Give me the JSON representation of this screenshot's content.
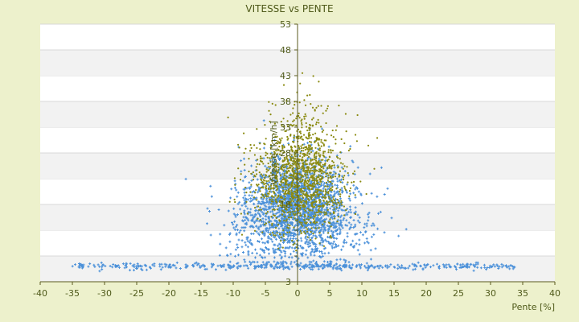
{
  "chart_data": {
    "type": "scatter",
    "title": "VITESSE vs PENTE",
    "xlabel": "Pente [%]",
    "ylabel": "Vitesse [km/h]",
    "xlim": [
      -40,
      40
    ],
    "ylim": [
      3,
      53
    ],
    "xticks": [
      -40,
      -35,
      -30,
      -25,
      -20,
      -15,
      -10,
      -5,
      0,
      5,
      10,
      15,
      20,
      25,
      30,
      35,
      40
    ],
    "yticks": [
      3,
      8,
      13,
      18,
      23,
      28,
      33,
      38,
      43,
      48,
      53
    ],
    "ytick_labels": [
      "3",
      "",
      "",
      "18",
      "",
      "28",
      "33",
      "38",
      "43",
      "48",
      "53"
    ],
    "grid": "horizontal bands",
    "legend": "none",
    "series": [
      {
        "color": "#4a90d9",
        "marker": "plus",
        "count": 2600,
        "x_mean": 0,
        "x_spread": 4.5,
        "y_mean": 18,
        "y_spread": 5,
        "baseline_y": 6,
        "baseline_x_range": [
          -35,
          34
        ]
      },
      {
        "color": "#8a8a10",
        "marker": "dot",
        "count": 1400,
        "x_mean": 0.5,
        "x_spread": 3.5,
        "y_mean": 23,
        "y_spread": 5.5,
        "x_range": [
          -13,
          13
        ],
        "y_range": [
          9,
          44
        ]
      }
    ],
    "colors": {
      "background": "#edf1cc",
      "plot_background": "#ffffff",
      "band": "#f2f2f2",
      "axis": "#5a5a1e",
      "text": "#4f5a1a"
    }
  }
}
